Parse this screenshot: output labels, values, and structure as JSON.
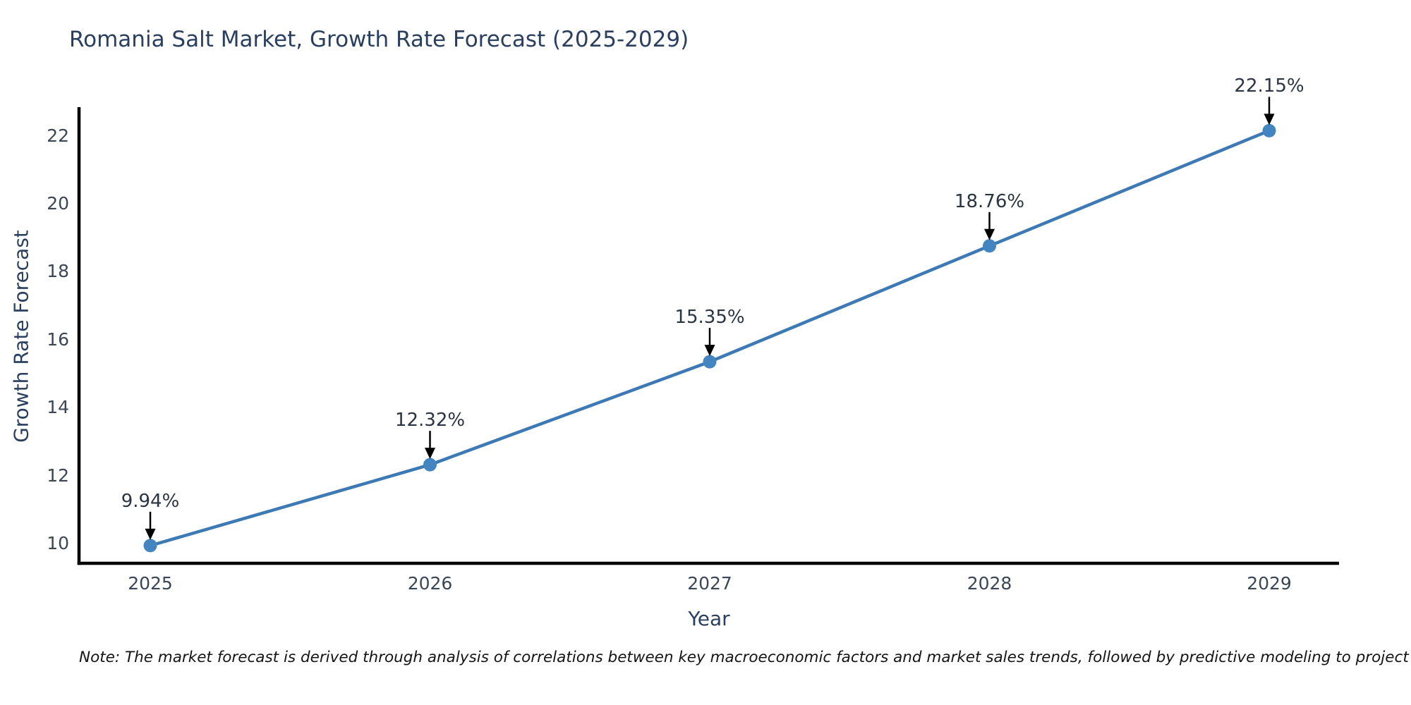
{
  "chart_data": {
    "type": "line",
    "title": "Romania Salt Market, Growth Rate Forecast (2025-2029)",
    "xlabel": "Year",
    "ylabel": "Growth Rate Forecast",
    "x": [
      2025,
      2026,
      2027,
      2028,
      2029
    ],
    "series": [
      {
        "name": "Growth Rate Forecast",
        "values": [
          9.94,
          12.32,
          15.35,
          18.76,
          22.15
        ],
        "point_labels": [
          "9.94%",
          "12.32%",
          "15.35%",
          "18.76%",
          "22.15%"
        ]
      }
    ],
    "xticks": [
      "2025",
      "2026",
      "2027",
      "2028",
      "2029"
    ],
    "yticks": [
      10,
      12,
      14,
      16,
      18,
      20,
      22
    ],
    "ylim": [
      9.4,
      22.7
    ],
    "xlim": [
      2024.74,
      2029.25
    ],
    "grid": false,
    "legend": "none",
    "annotations_have_arrows": true,
    "colors": {
      "line": "#3d7ab5",
      "marker": "#4285c0",
      "axis": "#000000",
      "arrow": "#000000",
      "title_text": "#2a3f5f",
      "tick_text": "#3b4656"
    },
    "note": "Note: The market forecast is derived through analysis of correlations between key macroeconomic factors and market sales trends, followed by predictive modeling to project future sales"
  }
}
